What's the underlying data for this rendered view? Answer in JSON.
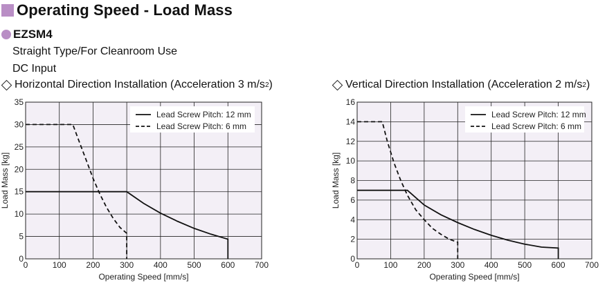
{
  "header": {
    "title": "Operating Speed - Load Mass",
    "accent_color": "#b98ec5",
    "model": "EZSM4",
    "lines": [
      "Straight Type/For Cleanroom Use",
      "DC Input"
    ]
  },
  "chart_data": [
    {
      "type": "line",
      "subtitle": "Horizontal Direction Installation (Acceleration 3 m/s",
      "subtitle_sup": "2",
      "subtitle_end": ")",
      "xlabel": "Operating Speed [mm/s]",
      "ylabel": "Load Mass [kg]",
      "xlim": [
        0,
        700
      ],
      "ylim": [
        0,
        35
      ],
      "xticks": [
        0,
        100,
        200,
        300,
        400,
        500,
        600,
        700
      ],
      "yticks": [
        0,
        5,
        10,
        15,
        20,
        25,
        30,
        35
      ],
      "grid": true,
      "legend_position": "top-right",
      "series": [
        {
          "name": "Lead Screw Pitch: 12 mm",
          "style": "solid",
          "points": [
            [
              0,
              15
            ],
            [
              300,
              15
            ],
            [
              350,
              12.4
            ],
            [
              400,
              10.2
            ],
            [
              450,
              8.4
            ],
            [
              500,
              6.8
            ],
            [
              550,
              5.5
            ],
            [
              600,
              4.4
            ],
            [
              600,
              0
            ]
          ]
        },
        {
          "name": "Lead Screw Pitch: 6 mm",
          "style": "dashed",
          "points": [
            [
              0,
              30
            ],
            [
              140,
              30
            ],
            [
              160,
              26
            ],
            [
              180,
              22
            ],
            [
              200,
              18
            ],
            [
              220,
              14.5
            ],
            [
              240,
              11.5
            ],
            [
              260,
              9
            ],
            [
              280,
              7
            ],
            [
              300,
              5.7
            ],
            [
              300,
              0
            ]
          ]
        }
      ]
    },
    {
      "type": "line",
      "subtitle": "Vertical Direction Installation (Acceleration 2 m/s",
      "subtitle_sup": "2",
      "subtitle_end": ")",
      "xlabel": "Operating Speed [mm/s]",
      "ylabel": "Load Mass [kg]",
      "xlim": [
        0,
        700
      ],
      "ylim": [
        0,
        16
      ],
      "xticks": [
        0,
        100,
        200,
        300,
        400,
        500,
        600,
        700
      ],
      "yticks": [
        0,
        2,
        4,
        6,
        8,
        10,
        12,
        14,
        16
      ],
      "grid": true,
      "legend_position": "top-right",
      "series": [
        {
          "name": "Lead Screw Pitch: 12 mm",
          "style": "solid",
          "points": [
            [
              0,
              7
            ],
            [
              150,
              7
            ],
            [
              200,
              5.5
            ],
            [
              250,
              4.5
            ],
            [
              300,
              3.7
            ],
            [
              350,
              3
            ],
            [
              400,
              2.4
            ],
            [
              450,
              1.9
            ],
            [
              500,
              1.5
            ],
            [
              550,
              1.2
            ],
            [
              600,
              1.1
            ],
            [
              600,
              0
            ]
          ]
        },
        {
          "name": "Lead Screw Pitch: 6 mm",
          "style": "dashed",
          "points": [
            [
              0,
              14
            ],
            [
              75,
              14
            ],
            [
              90,
              12
            ],
            [
              110,
              9.8
            ],
            [
              130,
              8
            ],
            [
              150,
              6.5
            ],
            [
              175,
              5
            ],
            [
              200,
              4
            ],
            [
              225,
              3.1
            ],
            [
              250,
              2.5
            ],
            [
              275,
              2
            ],
            [
              300,
              1.7
            ],
            [
              300,
              0
            ]
          ]
        }
      ]
    }
  ],
  "colors": {
    "plot_bg": "#f3eff6",
    "grid": "#222222",
    "curve": "#111111"
  }
}
